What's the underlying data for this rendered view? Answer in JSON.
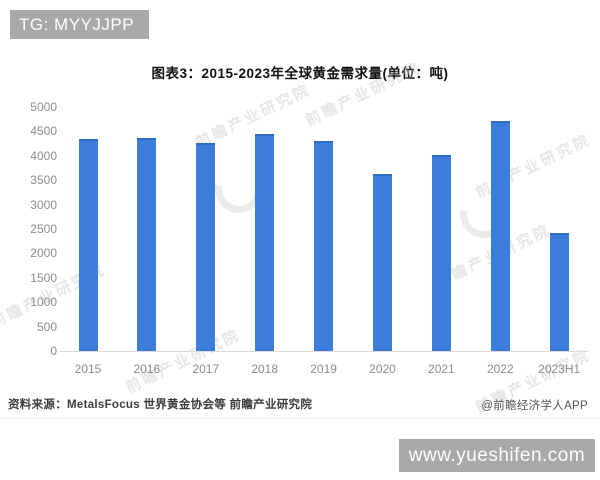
{
  "header": {
    "badge": "TG: MYYJJPP"
  },
  "chart_data": {
    "type": "bar",
    "title": "图表3：2015-2023年全球黄金需求量(单位：吨)",
    "xlabel": "",
    "ylabel": "",
    "unit": "吨",
    "categories": [
      "2015",
      "2016",
      "2017",
      "2018",
      "2019",
      "2020",
      "2021",
      "2022",
      "2023H1"
    ],
    "values": [
      4340,
      4360,
      4260,
      4440,
      4310,
      3620,
      4010,
      4710,
      2420
    ],
    "ylim": [
      0,
      5000
    ],
    "ytick_step": 500,
    "grid": false,
    "legend": false,
    "bar_color": "#3c7ddc"
  },
  "footer": {
    "source": "资料来源：MetalsFocus 世界黄金协会等 前瞻产业研究院",
    "credit": "@前瞻经济学人APP"
  },
  "bottom_banner": {
    "url_text": "www.yueshifen.com"
  },
  "watermark": {
    "text": "前瞻产业研究院"
  },
  "colors": {
    "bar": "#3c7ddc",
    "bar_edge": "#2e6bc4",
    "badge_bg": "#a9a9a9",
    "banner_bg": "#a9a9a9",
    "axis_text": "#8c8c8c",
    "axis_line": "#d9d9d9",
    "title_text": "#111111"
  }
}
